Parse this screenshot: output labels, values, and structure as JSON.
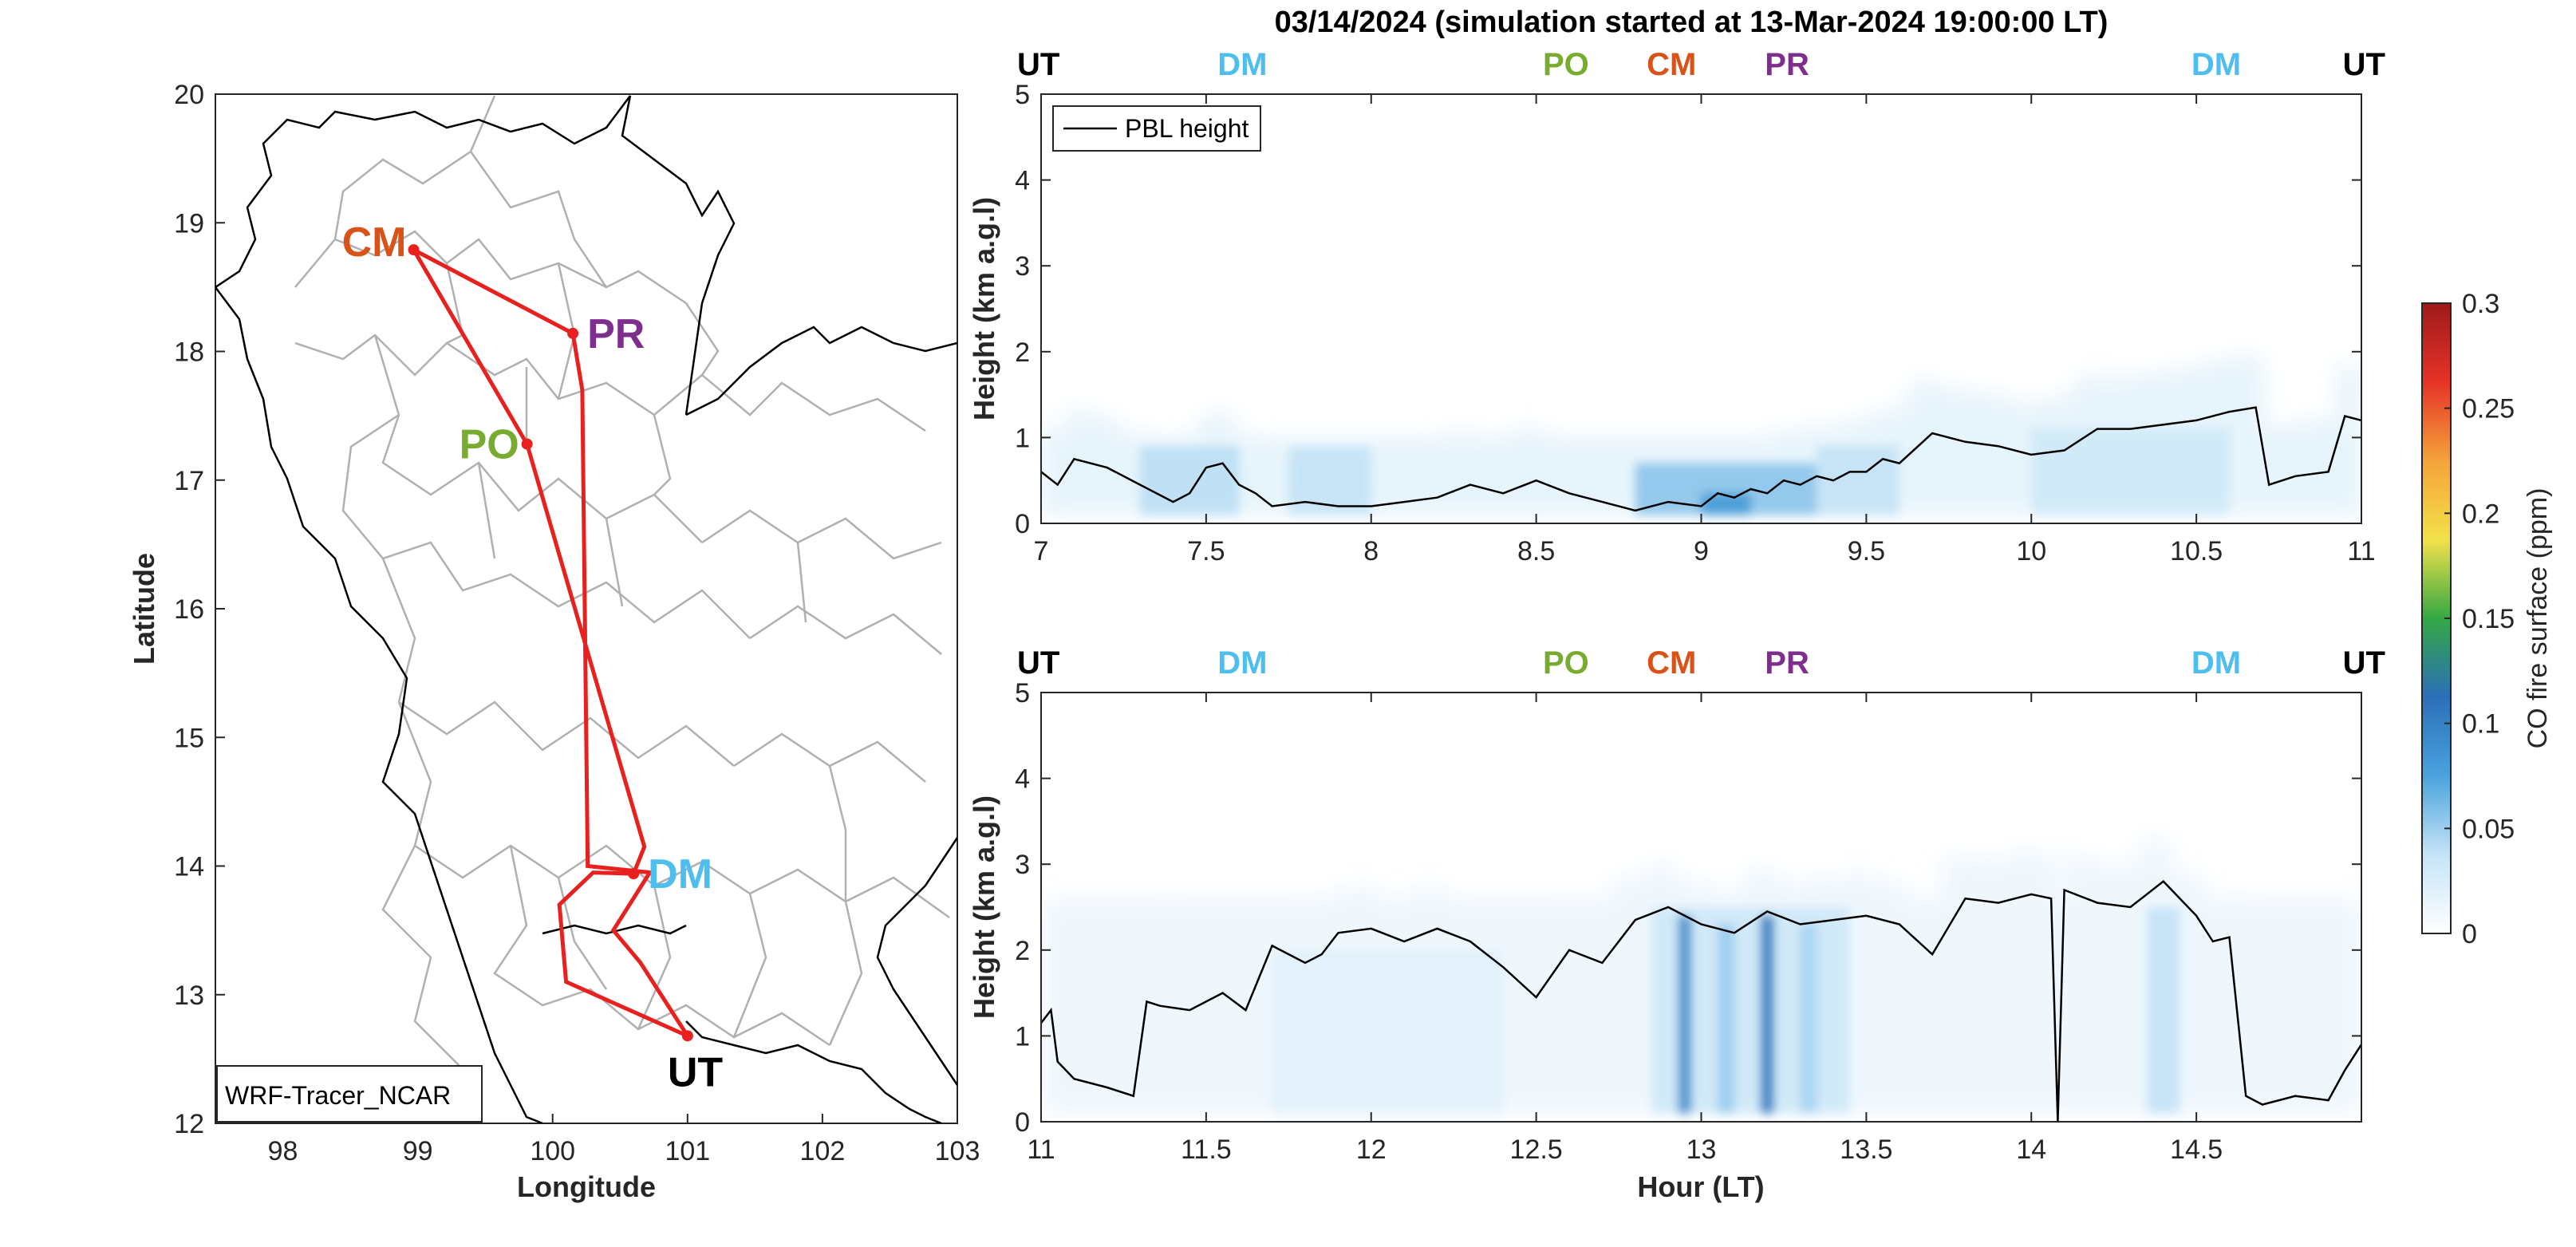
{
  "title": "03/14/2024 (simulation started at 13-Mar-2024 19:00:00 LT)",
  "map": {
    "xlabel": "Longitude",
    "ylabel": "Latitude",
    "xticks": [
      "98",
      "99",
      "100",
      "101",
      "102",
      "103"
    ],
    "yticks": [
      "12",
      "13",
      "14",
      "15",
      "16",
      "17",
      "18",
      "19",
      "20"
    ],
    "xlim": [
      97.5,
      103
    ],
    "ylim": [
      12,
      20
    ],
    "model_label": "WRF-Tracer_NCAR",
    "route_color": "#e8201e",
    "sites": [
      {
        "code": "CM",
        "lon": 98.97,
        "lat": 18.79,
        "color": "#d95319"
      },
      {
        "code": "PR",
        "lon": 100.15,
        "lat": 18.14,
        "color": "#7e2f8e"
      },
      {
        "code": "PO",
        "lon": 99.81,
        "lat": 17.28,
        "color": "#77ac30"
      },
      {
        "code": "DM",
        "lon": 100.6,
        "lat": 13.94,
        "color": "#4dbeee"
      },
      {
        "code": "UT",
        "lon": 101.0,
        "lat": 12.68,
        "color": "#000000"
      }
    ]
  },
  "panels": [
    {
      "ylabel": "Height (km a.g.l)",
      "xlim": [
        7,
        11
      ],
      "xticks": [
        "7",
        "7.5",
        "8",
        "8.5",
        "9",
        "9.5",
        "10",
        "10.5",
        "11"
      ],
      "yticks": [
        "0",
        "1",
        "2",
        "3",
        "4",
        "5"
      ],
      "legend": "PBL height",
      "sites": [
        {
          "code": "UT",
          "color": "#000000"
        },
        {
          "code": "DM",
          "color": "#4dbeee"
        },
        {
          "code": "PO",
          "color": "#77ac30"
        },
        {
          "code": "CM",
          "color": "#d95319"
        },
        {
          "code": "PR",
          "color": "#7e2f8e"
        },
        {
          "code": "DM",
          "color": "#4dbeee"
        },
        {
          "code": "UT",
          "color": "#000000"
        }
      ]
    },
    {
      "ylabel": "Height (km a.g.l)",
      "xlabel": "Hour (LT)",
      "xlim": [
        11,
        15
      ],
      "xticks": [
        "11",
        "11.5",
        "12",
        "12.5",
        "13",
        "13.5",
        "14",
        "14.5"
      ],
      "yticks": [
        "0",
        "1",
        "2",
        "3",
        "4",
        "5"
      ],
      "sites": [
        {
          "code": "UT",
          "color": "#000000"
        },
        {
          "code": "DM",
          "color": "#4dbeee"
        },
        {
          "code": "PO",
          "color": "#77ac30"
        },
        {
          "code": "CM",
          "color": "#d95319"
        },
        {
          "code": "PR",
          "color": "#7e2f8e"
        },
        {
          "code": "DM",
          "color": "#4dbeee"
        },
        {
          "code": "UT",
          "color": "#000000"
        }
      ]
    }
  ],
  "colorbar": {
    "label": "CO fire surface (ppm)",
    "ticks": [
      "0",
      "0.05",
      "0.1",
      "0.15",
      "0.2",
      "0.25",
      "0.3"
    ],
    "range": [
      0,
      0.3
    ],
    "colormap": [
      "#ffffff",
      "#c6e4f7",
      "#4aa3dd",
      "#2b6fb8",
      "#35a845",
      "#f3e14a",
      "#f4a33a",
      "#e53328",
      "#9e1a1a"
    ]
  },
  "chart_data": [
    {
      "type": "line",
      "title": "03/14/2024 (simulation started at 13-Mar-2024 19:00:00 LT)",
      "xlabel": "",
      "ylabel": "Height (km a.g.l)",
      "xlim": [
        7,
        11
      ],
      "ylim": [
        0,
        5
      ],
      "series": [
        {
          "name": "PBL height",
          "x": [
            7.0,
            7.05,
            7.1,
            7.2,
            7.3,
            7.4,
            7.45,
            7.5,
            7.55,
            7.6,
            7.65,
            7.7,
            7.8,
            7.9,
            8.0,
            8.1,
            8.2,
            8.3,
            8.4,
            8.5,
            8.6,
            8.7,
            8.8,
            8.9,
            9.0,
            9.05,
            9.1,
            9.15,
            9.2,
            9.25,
            9.3,
            9.35,
            9.4,
            9.45,
            9.5,
            9.55,
            9.6,
            9.7,
            9.8,
            9.9,
            10.0,
            10.1,
            10.2,
            10.3,
            10.4,
            10.5,
            10.6,
            10.68,
            10.72,
            10.8,
            10.9,
            10.95,
            11.0
          ],
          "y": [
            0.6,
            0.45,
            0.75,
            0.65,
            0.45,
            0.25,
            0.35,
            0.65,
            0.7,
            0.45,
            0.35,
            0.2,
            0.25,
            0.2,
            0.2,
            0.25,
            0.3,
            0.45,
            0.35,
            0.5,
            0.35,
            0.25,
            0.15,
            0.25,
            0.2,
            0.35,
            0.3,
            0.4,
            0.35,
            0.5,
            0.45,
            0.55,
            0.5,
            0.6,
            0.6,
            0.75,
            0.7,
            1.05,
            0.95,
            0.9,
            0.8,
            0.85,
            1.1,
            1.1,
            1.15,
            1.2,
            1.3,
            1.35,
            0.45,
            0.55,
            0.6,
            1.25,
            1.2
          ]
        }
      ]
    },
    {
      "type": "line",
      "xlabel": "Hour (LT)",
      "ylabel": "Height (km a.g.l)",
      "xlim": [
        11,
        15
      ],
      "ylim": [
        0,
        5
      ],
      "series": [
        {
          "name": "PBL height",
          "x": [
            11.0,
            11.03,
            11.05,
            11.1,
            11.2,
            11.28,
            11.32,
            11.36,
            11.45,
            11.55,
            11.62,
            11.7,
            11.8,
            11.85,
            11.9,
            12.0,
            12.1,
            12.2,
            12.3,
            12.4,
            12.5,
            12.6,
            12.7,
            12.8,
            12.9,
            13.0,
            13.1,
            13.2,
            13.3,
            13.4,
            13.5,
            13.6,
            13.7,
            13.8,
            13.9,
            14.0,
            14.06,
            14.08,
            14.1,
            14.2,
            14.3,
            14.4,
            14.5,
            14.55,
            14.6,
            14.65,
            14.7,
            14.8,
            14.9,
            14.95,
            15.0
          ],
          "y": [
            1.15,
            1.3,
            0.7,
            0.5,
            0.4,
            0.3,
            1.4,
            1.35,
            1.3,
            1.5,
            1.3,
            2.05,
            1.85,
            1.95,
            2.2,
            2.25,
            2.1,
            2.25,
            2.1,
            1.8,
            1.45,
            2.0,
            1.85,
            2.35,
            2.5,
            2.3,
            2.2,
            2.45,
            2.3,
            2.35,
            2.4,
            2.3,
            1.95,
            2.6,
            2.55,
            2.65,
            2.6,
            0.0,
            2.7,
            2.55,
            2.5,
            2.8,
            2.4,
            2.1,
            2.15,
            0.3,
            0.2,
            0.3,
            0.25,
            0.6,
            0.9
          ]
        }
      ]
    }
  ]
}
